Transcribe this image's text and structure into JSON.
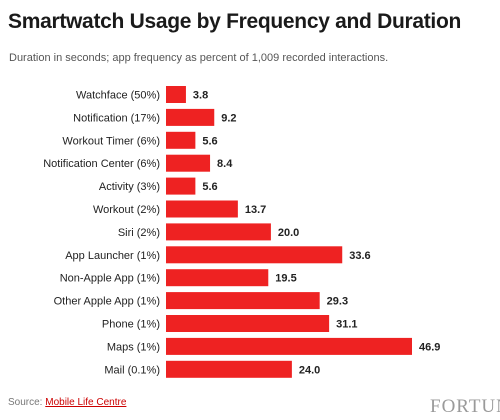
{
  "chart_data": {
    "type": "bar",
    "orientation": "horizontal",
    "title": "Smartwatch Usage by Frequency and Duration",
    "subtitle": "Duration in seconds; app frequency as percent of 1,009 recorded interactions.",
    "categories": [
      "Watchface (50%)",
      "Notification (17%)",
      "Workout Timer (6%)",
      "Notification Center (6%)",
      "Activity (3%)",
      "Workout (2%)",
      "Siri (2%)",
      "App Launcher (1%)",
      "Non-Apple App (1%)",
      "Other Apple App (1%)",
      "Phone (1%)",
      "Maps (1%)",
      "Mail (0.1%)"
    ],
    "values": [
      3.8,
      9.2,
      5.6,
      8.4,
      5.6,
      13.7,
      20.0,
      33.6,
      19.5,
      29.3,
      31.1,
      46.9,
      24.0
    ],
    "value_labels": [
      "3.8",
      "9.2",
      "5.6",
      "8.4",
      "5.6",
      "13.7",
      "20.0",
      "33.6",
      "19.5",
      "29.3",
      "31.1",
      "46.9",
      "24.0"
    ],
    "xlim": [
      0,
      46.9
    ],
    "grid": false,
    "legend": "none"
  },
  "source": {
    "label": "Source:",
    "name": "Mobile Life Centre"
  },
  "watermark": "FORTUNE",
  "colors": {
    "bar": "#ee2222",
    "text": "#222222",
    "source_link": "#cc0000"
  }
}
